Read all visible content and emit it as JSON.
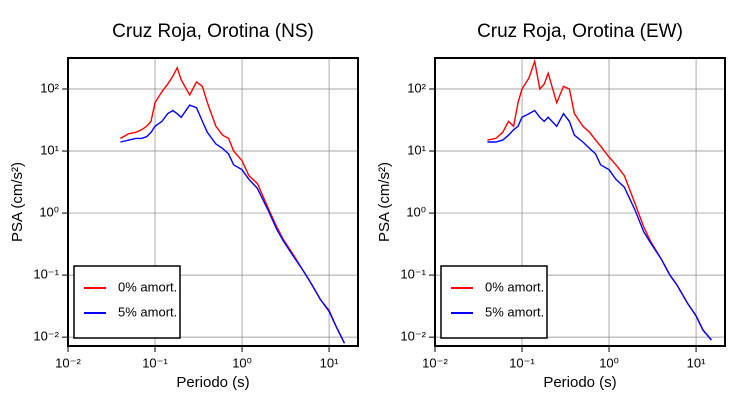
{
  "chart_data": [
    {
      "type": "line",
      "title": "Cruz Roja, Orotina (NS)",
      "x_label": "Periodo (s)",
      "y_label": "PSA (cm/s²)",
      "x_scale": "log",
      "y_scale": "log",
      "grid": true,
      "legend": "lower left",
      "xlim": [
        0.01,
        21.5
      ],
      "ylim": [
        0.0072,
        316
      ],
      "xticks": [
        {
          "value": 0.01,
          "label": "10⁻²"
        },
        {
          "value": 0.1,
          "label": "10⁻¹"
        },
        {
          "value": 1,
          "label": "10⁰"
        },
        {
          "value": 10,
          "label": "10¹"
        }
      ],
      "yticks": [
        {
          "value": 0.01,
          "label": "10⁻²"
        },
        {
          "value": 0.1,
          "label": "10⁻¹"
        },
        {
          "value": 1,
          "label": "10⁰"
        },
        {
          "value": 10,
          "label": "10¹"
        },
        {
          "value": 100,
          "label": "10²"
        }
      ],
      "x": [
        0.04,
        0.05,
        0.06,
        0.07,
        0.08,
        0.09,
        0.1,
        0.12,
        0.14,
        0.16,
        0.18,
        0.2,
        0.25,
        0.3,
        0.35,
        0.4,
        0.5,
        0.6,
        0.7,
        0.8,
        1.0,
        1.2,
        1.5,
        2,
        2.5,
        3,
        4,
        5,
        6,
        8,
        10,
        12,
        15
      ],
      "series": [
        {
          "name": "0% amort.",
          "color": "#ff0000",
          "values": [
            16,
            19,
            20,
            22,
            25,
            30,
            60,
            90,
            120,
            160,
            220,
            140,
            80,
            130,
            110,
            60,
            25,
            18,
            16,
            10,
            7,
            4,
            3,
            1.2,
            0.6,
            0.37,
            0.2,
            0.12,
            0.08,
            0.04,
            0.027,
            0.015,
            0.008
          ]
        },
        {
          "name": "5% amort.",
          "color": "#0000ff",
          "values": [
            14,
            15,
            16,
            16,
            17,
            20,
            25,
            30,
            40,
            45,
            40,
            35,
            55,
            50,
            30,
            20,
            13,
            11,
            9,
            6,
            5,
            3.5,
            2.5,
            1.1,
            0.55,
            0.35,
            0.19,
            0.12,
            0.08,
            0.04,
            0.026,
            0.015,
            0.008
          ]
        }
      ]
    },
    {
      "type": "line",
      "title": "Cruz Roja, Orotina (EW)",
      "x_label": "Periodo (s)",
      "y_label": "PSA (cm/s²)",
      "x_scale": "log",
      "y_scale": "log",
      "grid": true,
      "legend": "lower left",
      "xlim": [
        0.01,
        21.5
      ],
      "ylim": [
        0.0072,
        316
      ],
      "xticks": [
        {
          "value": 0.01,
          "label": "10⁻²"
        },
        {
          "value": 0.1,
          "label": "10⁻¹"
        },
        {
          "value": 1,
          "label": "10⁰"
        },
        {
          "value": 10,
          "label": "10¹"
        }
      ],
      "yticks": [
        {
          "value": 0.01,
          "label": "10⁻²"
        },
        {
          "value": 0.1,
          "label": "10⁻¹"
        },
        {
          "value": 1,
          "label": "10⁰"
        },
        {
          "value": 10,
          "label": "10¹"
        },
        {
          "value": 100,
          "label": "10²"
        }
      ],
      "x": [
        0.04,
        0.05,
        0.06,
        0.07,
        0.08,
        0.09,
        0.1,
        0.12,
        0.14,
        0.16,
        0.18,
        0.2,
        0.25,
        0.3,
        0.35,
        0.4,
        0.5,
        0.6,
        0.7,
        0.8,
        1.0,
        1.2,
        1.5,
        2,
        2.5,
        3,
        4,
        5,
        6,
        8,
        10,
        12,
        15
      ],
      "series": [
        {
          "name": "0% amort.",
          "color": "#ff0000",
          "values": [
            15,
            16,
            20,
            30,
            25,
            60,
            100,
            150,
            280,
            100,
            120,
            180,
            60,
            110,
            100,
            40,
            25,
            20,
            15,
            12,
            8,
            6,
            4,
            1.4,
            0.6,
            0.35,
            0.18,
            0.1,
            0.07,
            0.035,
            0.022,
            0.013,
            0.009
          ]
        },
        {
          "name": "5% amort.",
          "color": "#0000ff",
          "values": [
            14,
            14,
            15,
            18,
            22,
            25,
            35,
            40,
            45,
            35,
            30,
            35,
            25,
            40,
            30,
            18,
            14,
            11,
            9,
            6,
            5,
            3.5,
            2.6,
            1.1,
            0.5,
            0.33,
            0.18,
            0.1,
            0.07,
            0.035,
            0.022,
            0.013,
            0.009
          ]
        }
      ]
    }
  ]
}
